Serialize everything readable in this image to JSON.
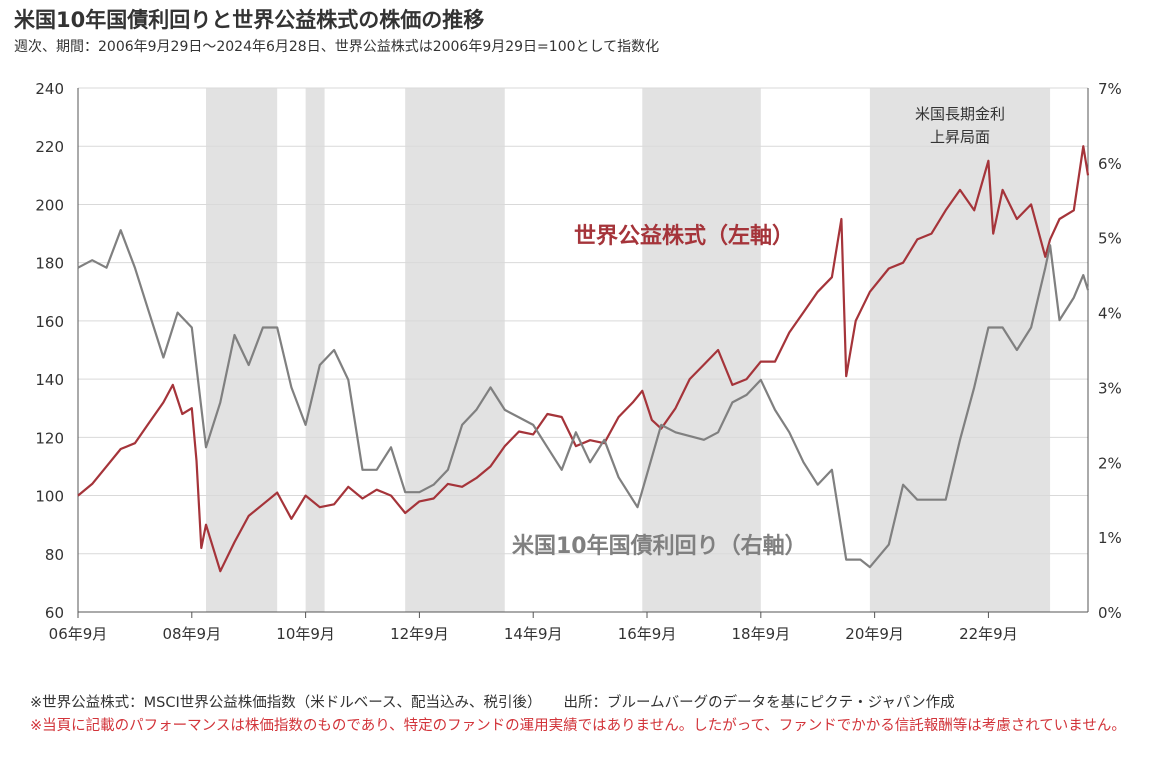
{
  "title": "米国10年国債利回りと世界公益株式の株価の推移",
  "subtitle": "週次、期間：2006年9月29日～2024年6月28日、世界公益株式は2006年9月29日=100として指数化",
  "footnotes": {
    "line1": "※世界公益株式：MSCI世界公益株価指数（米ドルベース、配当込み、税引後）",
    "source": "出所：ブルームバーグのデータを基にピクテ・ジャパン作成",
    "line2": "※当頁に記載のパフォーマンスは株価指数のものであり、特定のファンドの運用実績ではありません。したがって、ファンドでかかる信託報酬等は考慮されていません。"
  },
  "chart_data": {
    "type": "line",
    "x_ticks": [
      "06年9月",
      "08年9月",
      "10年9月",
      "12年9月",
      "14年9月",
      "16年9月",
      "18年9月",
      "20年9月",
      "22年9月"
    ],
    "x_range": [
      "2006-09",
      "2024-06"
    ],
    "y_left": {
      "ticks": [
        "240",
        "220",
        "200",
        "180",
        "160",
        "140",
        "120",
        "100",
        "80",
        "60"
      ],
      "range": [
        60,
        240
      ]
    },
    "y_right": {
      "ticks": [
        "7%",
        "6%",
        "5%",
        "4%",
        "3%",
        "2%",
        "1%",
        "0%"
      ],
      "range": [
        0,
        7
      ]
    },
    "shaded_periods": [
      {
        "start": "2008-12",
        "end": "2010-03"
      },
      {
        "start": "2010-09",
        "end": "2011-01"
      },
      {
        "start": "2012-06",
        "end": "2014-03"
      },
      {
        "start": "2016-08",
        "end": "2018-09"
      },
      {
        "start": "2020-08",
        "end": "2023-10",
        "label": [
          "米国長期金利",
          "上昇局面"
        ]
      }
    ],
    "series": [
      {
        "name": "世界公益株式（左軸）",
        "axis": "left",
        "color": "#a5343a",
        "points": [
          [
            "2006-09",
            100
          ],
          [
            "2006-12",
            104
          ],
          [
            "2007-03",
            110
          ],
          [
            "2007-06",
            116
          ],
          [
            "2007-09",
            118
          ],
          [
            "2007-12",
            125
          ],
          [
            "2008-03",
            132
          ],
          [
            "2008-05",
            138
          ],
          [
            "2008-07",
            128
          ],
          [
            "2008-09",
            130
          ],
          [
            "2008-10",
            112
          ],
          [
            "2008-11",
            82
          ],
          [
            "2008-12",
            90
          ],
          [
            "2009-03",
            74
          ],
          [
            "2009-06",
            84
          ],
          [
            "2009-09",
            93
          ],
          [
            "2009-12",
            97
          ],
          [
            "2010-03",
            101
          ],
          [
            "2010-06",
            92
          ],
          [
            "2010-09",
            100
          ],
          [
            "2010-12",
            96
          ],
          [
            "2011-03",
            97
          ],
          [
            "2011-06",
            103
          ],
          [
            "2011-09",
            99
          ],
          [
            "2011-12",
            102
          ],
          [
            "2012-03",
            100
          ],
          [
            "2012-06",
            94
          ],
          [
            "2012-09",
            98
          ],
          [
            "2012-12",
            99
          ],
          [
            "2013-03",
            104
          ],
          [
            "2013-06",
            103
          ],
          [
            "2013-09",
            106
          ],
          [
            "2013-12",
            110
          ],
          [
            "2014-03",
            117
          ],
          [
            "2014-06",
            122
          ],
          [
            "2014-09",
            121
          ],
          [
            "2014-12",
            128
          ],
          [
            "2015-03",
            127
          ],
          [
            "2015-06",
            117
          ],
          [
            "2015-09",
            119
          ],
          [
            "2015-12",
            118
          ],
          [
            "2016-03",
            127
          ],
          [
            "2016-06",
            132
          ],
          [
            "2016-08",
            136
          ],
          [
            "2016-10",
            126
          ],
          [
            "2016-12",
            123
          ],
          [
            "2017-03",
            130
          ],
          [
            "2017-06",
            140
          ],
          [
            "2017-09",
            145
          ],
          [
            "2017-12",
            150
          ],
          [
            "2018-03",
            138
          ],
          [
            "2018-06",
            140
          ],
          [
            "2018-09",
            146
          ],
          [
            "2018-12",
            146
          ],
          [
            "2019-03",
            156
          ],
          [
            "2019-06",
            163
          ],
          [
            "2019-09",
            170
          ],
          [
            "2019-12",
            175
          ],
          [
            "2020-02",
            195
          ],
          [
            "2020-03",
            141
          ],
          [
            "2020-05",
            160
          ],
          [
            "2020-08",
            170
          ],
          [
            "2020-12",
            178
          ],
          [
            "2021-03",
            180
          ],
          [
            "2021-06",
            188
          ],
          [
            "2021-09",
            190
          ],
          [
            "2021-12",
            198
          ],
          [
            "2022-03",
            205
          ],
          [
            "2022-06",
            198
          ],
          [
            "2022-09",
            215
          ],
          [
            "2022-10",
            190
          ],
          [
            "2022-12",
            205
          ],
          [
            "2023-03",
            195
          ],
          [
            "2023-06",
            200
          ],
          [
            "2023-09",
            182
          ],
          [
            "2023-10",
            188
          ],
          [
            "2023-12",
            195
          ],
          [
            "2024-03",
            198
          ],
          [
            "2024-05",
            220
          ],
          [
            "2024-06",
            210
          ]
        ]
      },
      {
        "name": "米国10年国債利回り（右軸）",
        "axis": "right",
        "color": "#808080",
        "points": [
          [
            "2006-09",
            4.6
          ],
          [
            "2006-12",
            4.7
          ],
          [
            "2007-03",
            4.6
          ],
          [
            "2007-06",
            5.1
          ],
          [
            "2007-09",
            4.6
          ],
          [
            "2007-12",
            4.0
          ],
          [
            "2008-03",
            3.4
          ],
          [
            "2008-06",
            4.0
          ],
          [
            "2008-09",
            3.8
          ],
          [
            "2008-12",
            2.2
          ],
          [
            "2009-03",
            2.8
          ],
          [
            "2009-06",
            3.7
          ],
          [
            "2009-09",
            3.3
          ],
          [
            "2009-12",
            3.8
          ],
          [
            "2010-03",
            3.8
          ],
          [
            "2010-06",
            3.0
          ],
          [
            "2010-09",
            2.5
          ],
          [
            "2010-12",
            3.3
          ],
          [
            "2011-03",
            3.5
          ],
          [
            "2011-06",
            3.1
          ],
          [
            "2011-09",
            1.9
          ],
          [
            "2011-12",
            1.9
          ],
          [
            "2012-03",
            2.2
          ],
          [
            "2012-06",
            1.6
          ],
          [
            "2012-09",
            1.6
          ],
          [
            "2012-12",
            1.7
          ],
          [
            "2013-03",
            1.9
          ],
          [
            "2013-06",
            2.5
          ],
          [
            "2013-09",
            2.7
          ],
          [
            "2013-12",
            3.0
          ],
          [
            "2014-03",
            2.7
          ],
          [
            "2014-06",
            2.6
          ],
          [
            "2014-09",
            2.5
          ],
          [
            "2014-12",
            2.2
          ],
          [
            "2015-03",
            1.9
          ],
          [
            "2015-06",
            2.4
          ],
          [
            "2015-09",
            2.0
          ],
          [
            "2015-12",
            2.3
          ],
          [
            "2016-03",
            1.8
          ],
          [
            "2016-07",
            1.4
          ],
          [
            "2016-12",
            2.5
          ],
          [
            "2017-03",
            2.4
          ],
          [
            "2017-09",
            2.3
          ],
          [
            "2017-12",
            2.4
          ],
          [
            "2018-03",
            2.8
          ],
          [
            "2018-06",
            2.9
          ],
          [
            "2018-09",
            3.1
          ],
          [
            "2018-12",
            2.7
          ],
          [
            "2019-03",
            2.4
          ],
          [
            "2019-06",
            2.0
          ],
          [
            "2019-09",
            1.7
          ],
          [
            "2019-12",
            1.9
          ],
          [
            "2020-03",
            0.7
          ],
          [
            "2020-06",
            0.7
          ],
          [
            "2020-08",
            0.6
          ],
          [
            "2020-12",
            0.9
          ],
          [
            "2021-03",
            1.7
          ],
          [
            "2021-06",
            1.5
          ],
          [
            "2021-09",
            1.5
          ],
          [
            "2021-12",
            1.5
          ],
          [
            "2022-03",
            2.3
          ],
          [
            "2022-06",
            3.0
          ],
          [
            "2022-09",
            3.8
          ],
          [
            "2022-12",
            3.8
          ],
          [
            "2023-03",
            3.5
          ],
          [
            "2023-06",
            3.8
          ],
          [
            "2023-09",
            4.6
          ],
          [
            "2023-10",
            4.9
          ],
          [
            "2023-12",
            3.9
          ],
          [
            "2024-03",
            4.2
          ],
          [
            "2024-05",
            4.5
          ],
          [
            "2024-06",
            4.3
          ]
        ]
      }
    ],
    "labels": {
      "stock": "世界公益株式（左軸）",
      "yield": "米国10年国債利回り（右軸）"
    }
  }
}
